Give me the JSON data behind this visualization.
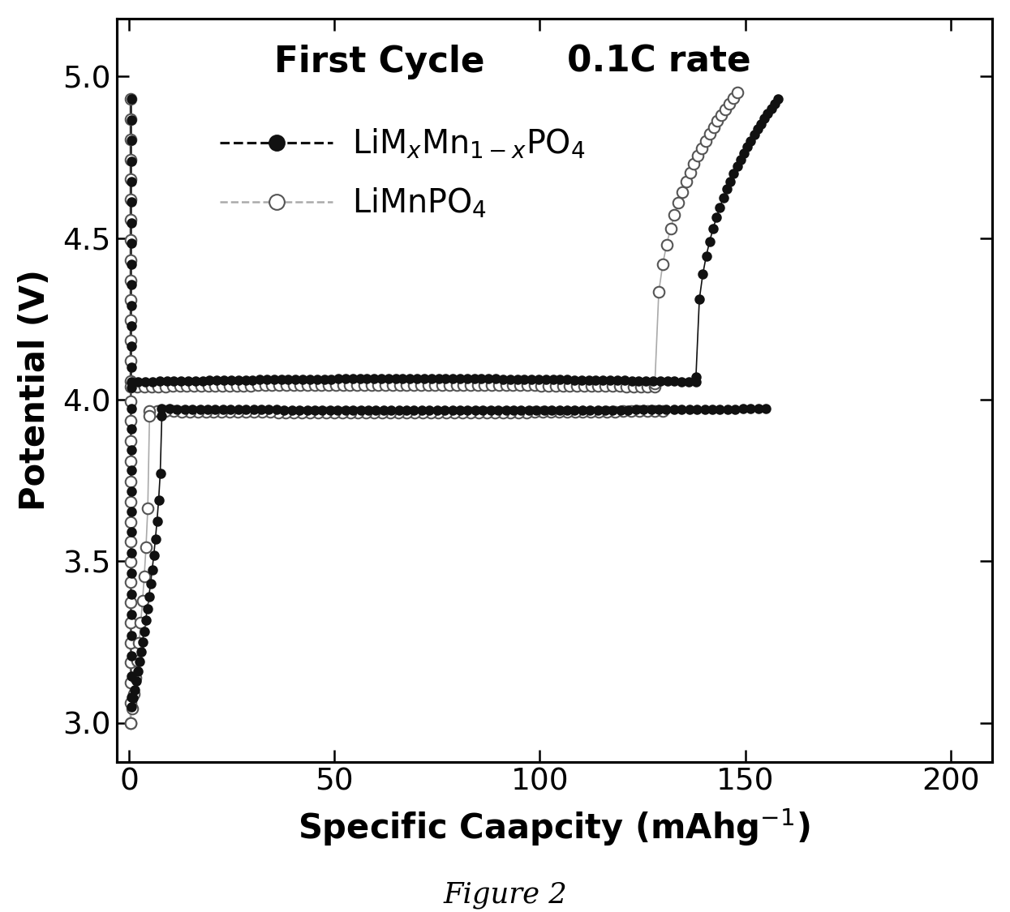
{
  "title_left": "First Cycle",
  "title_right": "0.1C rate",
  "xlabel": "Specific Caapcity (mAhg$^{-1}$)",
  "ylabel": "Potential (V)",
  "xlim": [
    -3,
    210
  ],
  "ylim": [
    2.88,
    5.18
  ],
  "xticks": [
    0,
    50,
    100,
    150,
    200
  ],
  "yticks": [
    3.0,
    3.5,
    4.0,
    4.5,
    5.0
  ],
  "figure_caption": "Figure 2",
  "background_color": "#ffffff",
  "title_fontsize": 21,
  "axis_label_fontsize": 20,
  "tick_fontsize": 18,
  "legend_fontsize": 19,
  "caption_fontsize": 17
}
